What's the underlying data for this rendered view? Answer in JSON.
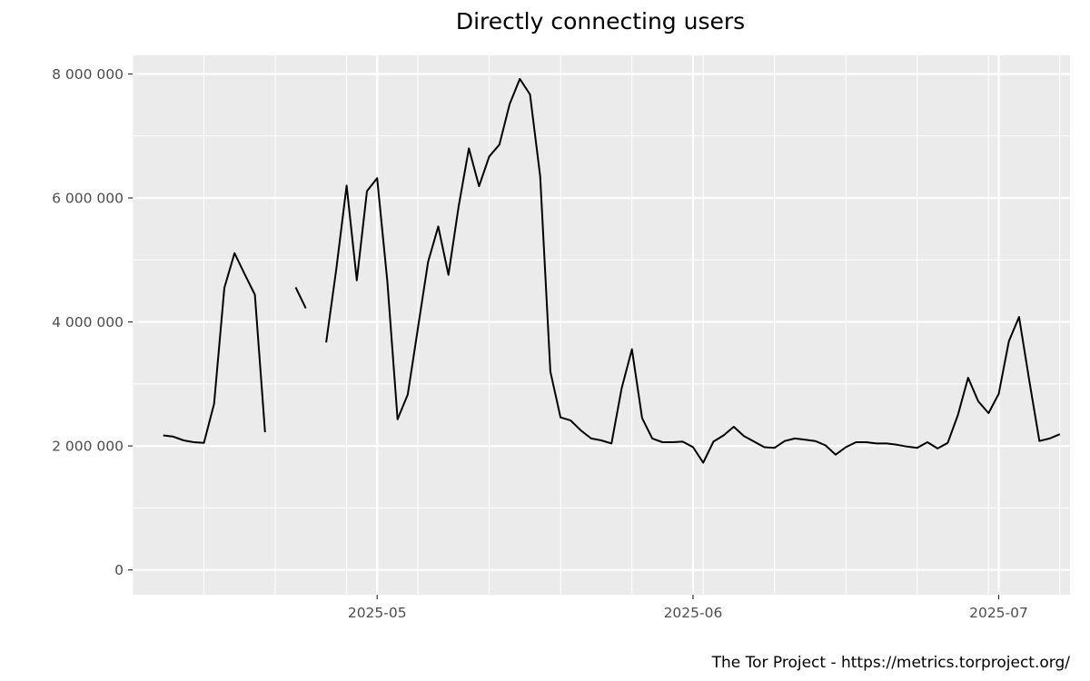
{
  "chart_data": {
    "type": "line",
    "title": "Directly connecting users",
    "caption": "The Tor Project - https://metrics.torproject.org/",
    "xlabel": "",
    "ylabel": "",
    "x_range": [
      "2025-04-07",
      "2025-07-08"
    ],
    "ylim": [
      -400000,
      8300000
    ],
    "x_ticks": [
      {
        "date": "2025-05-01",
        "label": "2025-05"
      },
      {
        "date": "2025-06-01",
        "label": "2025-06"
      },
      {
        "date": "2025-07-01",
        "label": "2025-07"
      }
    ],
    "y_ticks": [
      {
        "value": 0,
        "label": "0"
      },
      {
        "value": 2000000,
        "label": "2 000 000"
      },
      {
        "value": 4000000,
        "label": "4 000 000"
      },
      {
        "value": 6000000,
        "label": "6 000 000"
      },
      {
        "value": 8000000,
        "label": "8 000 000"
      }
    ],
    "grid": true,
    "background": "#ebebeb",
    "grid_color": "#ffffff",
    "line_color": "#000000",
    "series": [
      {
        "values": [
          [
            "2025-04-10",
            2170000
          ],
          [
            "2025-04-11",
            2150000
          ],
          [
            "2025-04-12",
            2090000
          ],
          [
            "2025-04-13",
            2060000
          ],
          [
            "2025-04-14",
            2050000
          ],
          [
            "2025-04-15",
            2680000
          ],
          [
            "2025-04-16",
            4550000
          ],
          [
            "2025-04-17",
            5110000
          ],
          [
            "2025-04-18",
            4770000
          ],
          [
            "2025-04-19",
            4440000
          ],
          [
            "2025-04-20",
            2220000
          ],
          [
            "2025-04-21",
            null
          ],
          [
            "2025-04-22",
            null
          ],
          [
            "2025-04-23",
            4560000
          ],
          [
            "2025-04-24",
            4220000
          ],
          [
            "2025-04-25",
            null
          ],
          [
            "2025-04-26",
            3670000
          ],
          [
            "2025-04-27",
            4860000
          ],
          [
            "2025-04-28",
            6200000
          ],
          [
            "2025-04-29",
            4670000
          ],
          [
            "2025-04-30",
            6110000
          ],
          [
            "2025-05-01",
            6320000
          ],
          [
            "2025-05-02",
            4660000
          ],
          [
            "2025-05-03",
            2430000
          ],
          [
            "2025-05-04",
            2830000
          ],
          [
            "2025-05-05",
            3900000
          ],
          [
            "2025-05-06",
            4970000
          ],
          [
            "2025-05-07",
            5540000
          ],
          [
            "2025-05-08",
            4760000
          ],
          [
            "2025-05-09",
            5870000
          ],
          [
            "2025-05-10",
            6800000
          ],
          [
            "2025-05-11",
            6190000
          ],
          [
            "2025-05-12",
            6670000
          ],
          [
            "2025-05-13",
            6860000
          ],
          [
            "2025-05-14",
            7510000
          ],
          [
            "2025-05-15",
            7920000
          ],
          [
            "2025-05-16",
            7670000
          ],
          [
            "2025-05-17",
            6350000
          ],
          [
            "2025-05-18",
            3200000
          ],
          [
            "2025-05-19",
            2460000
          ],
          [
            "2025-05-20",
            2410000
          ],
          [
            "2025-05-21",
            2250000
          ],
          [
            "2025-05-22",
            2120000
          ],
          [
            "2025-05-23",
            2090000
          ],
          [
            "2025-05-24",
            2040000
          ],
          [
            "2025-05-25",
            2930000
          ],
          [
            "2025-05-26",
            3560000
          ],
          [
            "2025-05-27",
            2450000
          ],
          [
            "2025-05-28",
            2120000
          ],
          [
            "2025-05-29",
            2060000
          ],
          [
            "2025-05-30",
            2060000
          ],
          [
            "2025-05-31",
            2070000
          ],
          [
            "2025-06-01",
            1980000
          ],
          [
            "2025-06-02",
            1730000
          ],
          [
            "2025-06-03",
            2070000
          ],
          [
            "2025-06-04",
            2170000
          ],
          [
            "2025-06-05",
            2310000
          ],
          [
            "2025-06-06",
            2160000
          ],
          [
            "2025-06-07",
            2070000
          ],
          [
            "2025-06-08",
            1980000
          ],
          [
            "2025-06-09",
            1970000
          ],
          [
            "2025-06-10",
            2080000
          ],
          [
            "2025-06-11",
            2120000
          ],
          [
            "2025-06-12",
            2100000
          ],
          [
            "2025-06-13",
            2080000
          ],
          [
            "2025-06-14",
            2010000
          ],
          [
            "2025-06-15",
            1860000
          ],
          [
            "2025-06-16",
            1980000
          ],
          [
            "2025-06-17",
            2060000
          ],
          [
            "2025-06-18",
            2060000
          ],
          [
            "2025-06-19",
            2040000
          ],
          [
            "2025-06-20",
            2040000
          ],
          [
            "2025-06-21",
            2020000
          ],
          [
            "2025-06-22",
            1990000
          ],
          [
            "2025-06-23",
            1970000
          ],
          [
            "2025-06-24",
            2060000
          ],
          [
            "2025-06-25",
            1960000
          ],
          [
            "2025-06-26",
            2050000
          ],
          [
            "2025-06-27",
            2500000
          ],
          [
            "2025-06-28",
            3100000
          ],
          [
            "2025-06-29",
            2720000
          ],
          [
            "2025-06-30",
            2530000
          ],
          [
            "2025-07-01",
            2840000
          ],
          [
            "2025-07-02",
            3690000
          ],
          [
            "2025-07-03",
            4080000
          ],
          [
            "2025-07-04",
            3060000
          ],
          [
            "2025-07-05",
            2080000
          ],
          [
            "2025-07-06",
            2120000
          ],
          [
            "2025-07-07",
            2190000
          ]
        ]
      }
    ]
  }
}
